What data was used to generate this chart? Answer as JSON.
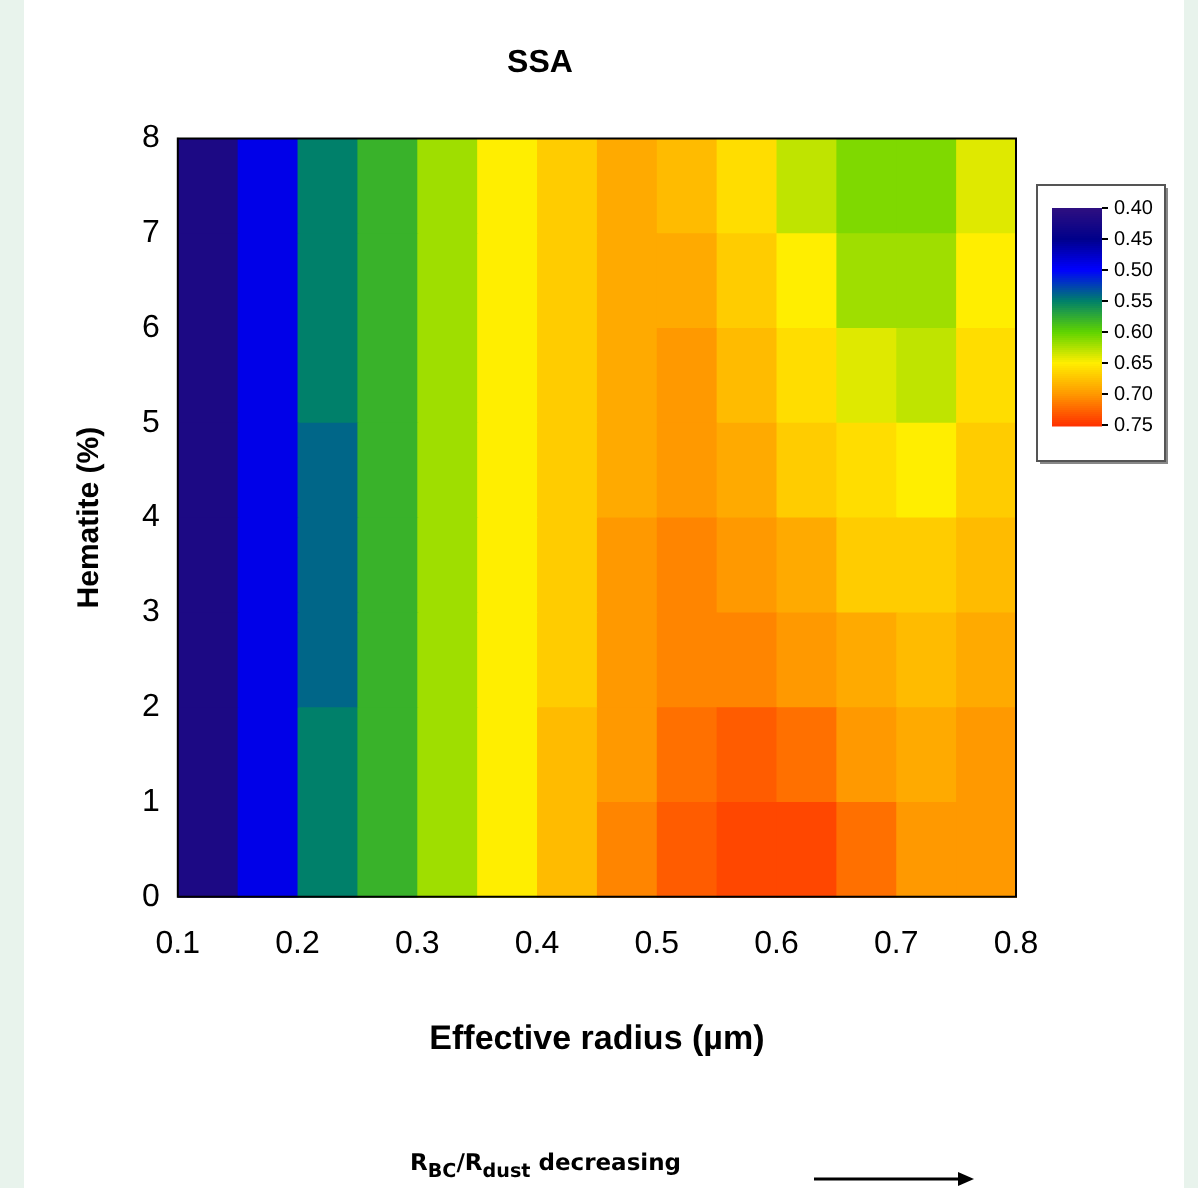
{
  "chart_data": {
    "type": "heatmap",
    "title": "SSA",
    "xlabel": "Effective radius (µm)",
    "ylabel": "Hematite (%)",
    "annotations": [
      "R$_{BC}$/R$_{dust}$ decreasing"
    ],
    "x": [
      0.125,
      0.175,
      0.225,
      0.275,
      0.325,
      0.375,
      0.425,
      0.475,
      0.525,
      0.575,
      0.625,
      0.675,
      0.725,
      0.775
    ],
    "y": [
      7.5,
      6.5,
      5.5,
      4.5,
      3.5,
      2.5,
      1.5,
      0.5
    ],
    "cells": [
      [
        0.42,
        0.49,
        0.55,
        0.58,
        0.62,
        0.65,
        0.67,
        0.69,
        0.68,
        0.66,
        0.63,
        0.61,
        0.61,
        0.64
      ],
      [
        0.42,
        0.49,
        0.55,
        0.58,
        0.62,
        0.65,
        0.67,
        0.69,
        0.69,
        0.67,
        0.65,
        0.62,
        0.62,
        0.65
      ],
      [
        0.42,
        0.49,
        0.55,
        0.58,
        0.62,
        0.65,
        0.67,
        0.69,
        0.7,
        0.68,
        0.66,
        0.64,
        0.63,
        0.66
      ],
      [
        0.42,
        0.49,
        0.54,
        0.58,
        0.62,
        0.65,
        0.67,
        0.69,
        0.7,
        0.69,
        0.67,
        0.66,
        0.65,
        0.67
      ],
      [
        0.42,
        0.49,
        0.54,
        0.58,
        0.62,
        0.65,
        0.67,
        0.7,
        0.71,
        0.7,
        0.69,
        0.67,
        0.67,
        0.68
      ],
      [
        0.42,
        0.49,
        0.54,
        0.58,
        0.62,
        0.65,
        0.67,
        0.7,
        0.71,
        0.71,
        0.7,
        0.69,
        0.68,
        0.69
      ],
      [
        0.42,
        0.49,
        0.55,
        0.58,
        0.62,
        0.65,
        0.68,
        0.7,
        0.72,
        0.73,
        0.72,
        0.7,
        0.69,
        0.7
      ],
      [
        0.42,
        0.49,
        0.55,
        0.58,
        0.62,
        0.65,
        0.68,
        0.71,
        0.73,
        0.74,
        0.74,
        0.72,
        0.7,
        0.7
      ]
    ],
    "cticks": [
      {
        "value": 0.4,
        "label": "0.40"
      },
      {
        "value": 0.45,
        "label": "0.45"
      },
      {
        "value": 0.5,
        "label": "0.50"
      },
      {
        "value": 0.55,
        "label": "0.55"
      },
      {
        "value": 0.6,
        "label": "0.60"
      },
      {
        "value": 0.65,
        "label": "0.65"
      },
      {
        "value": 0.7,
        "label": "0.70"
      },
      {
        "value": 0.75,
        "label": "0.75"
      }
    ],
    "clim": [
      0.4,
      0.75
    ],
    "colors": [
      "#2e0f80",
      "#00008b",
      "#0000ff",
      "#00806a",
      "#5fd400",
      "#ffee00",
      "#ff9900",
      "#ff3300"
    ],
    "xlim": [
      0.1,
      0.8
    ],
    "xticks": [
      0.1,
      0.2,
      0.3,
      0.4,
      0.5,
      0.6,
      0.7,
      0.8
    ],
    "ylim": [
      0,
      8
    ],
    "yticks": [
      0,
      1,
      2,
      3,
      4,
      5,
      6,
      7,
      8
    ]
  }
}
